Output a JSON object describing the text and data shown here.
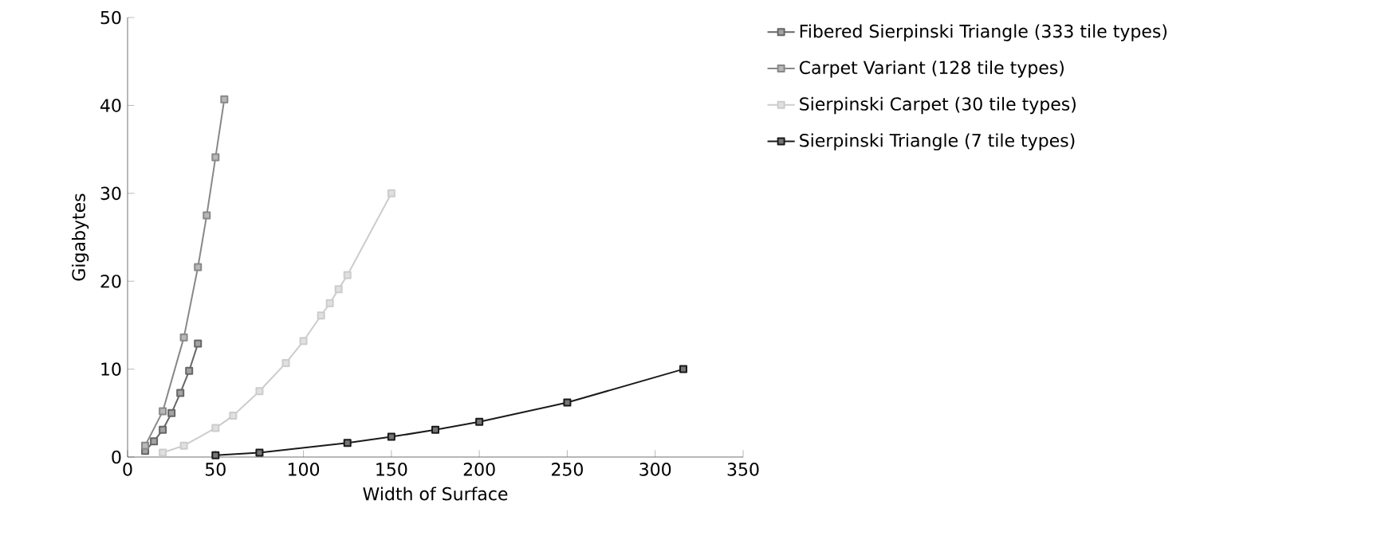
{
  "chart_data": {
    "type": "line",
    "xlabel": "Width of Surface",
    "ylabel": "Gigabytes",
    "xlim": [
      0,
      350
    ],
    "ylim": [
      0,
      50
    ],
    "xticks": [
      0,
      50,
      100,
      150,
      200,
      250,
      300,
      350
    ],
    "yticks": [
      0,
      10,
      20,
      30,
      40,
      50
    ],
    "grid": false,
    "legend": "right",
    "marker": "square",
    "series": [
      {
        "name": "Fibered Sierpinski Triangle (333 tile types)",
        "color": "#666666",
        "x": [
          10,
          15,
          20,
          25,
          30,
          35,
          40
        ],
        "values": [
          0.7,
          1.8,
          3.1,
          5.0,
          7.3,
          9.8,
          12.9
        ]
      },
      {
        "name": "Carpet Variant (128 tile types)",
        "color": "#888888",
        "x": [
          10,
          20,
          32,
          40,
          45,
          50,
          55
        ],
        "values": [
          1.3,
          5.2,
          13.6,
          21.6,
          27.5,
          34.1,
          40.7
        ]
      },
      {
        "name": "Sierpinski Carpet (30 tile types)",
        "color": "#cccccc",
        "x": [
          20,
          32,
          50,
          60,
          75,
          90,
          100,
          110,
          115,
          120,
          125,
          150
        ],
        "values": [
          0.5,
          1.3,
          3.3,
          4.7,
          7.5,
          10.7,
          13.2,
          16.1,
          17.5,
          19.1,
          20.7,
          30.0
        ]
      },
      {
        "name": "Sierpinski Triangle (7 tile types)",
        "color": "#1a1a1a",
        "x": [
          50,
          75,
          125,
          150,
          175,
          200,
          250,
          316
        ],
        "values": [
          0.2,
          0.5,
          1.6,
          2.3,
          3.1,
          4.0,
          6.2,
          10.0
        ]
      }
    ]
  }
}
